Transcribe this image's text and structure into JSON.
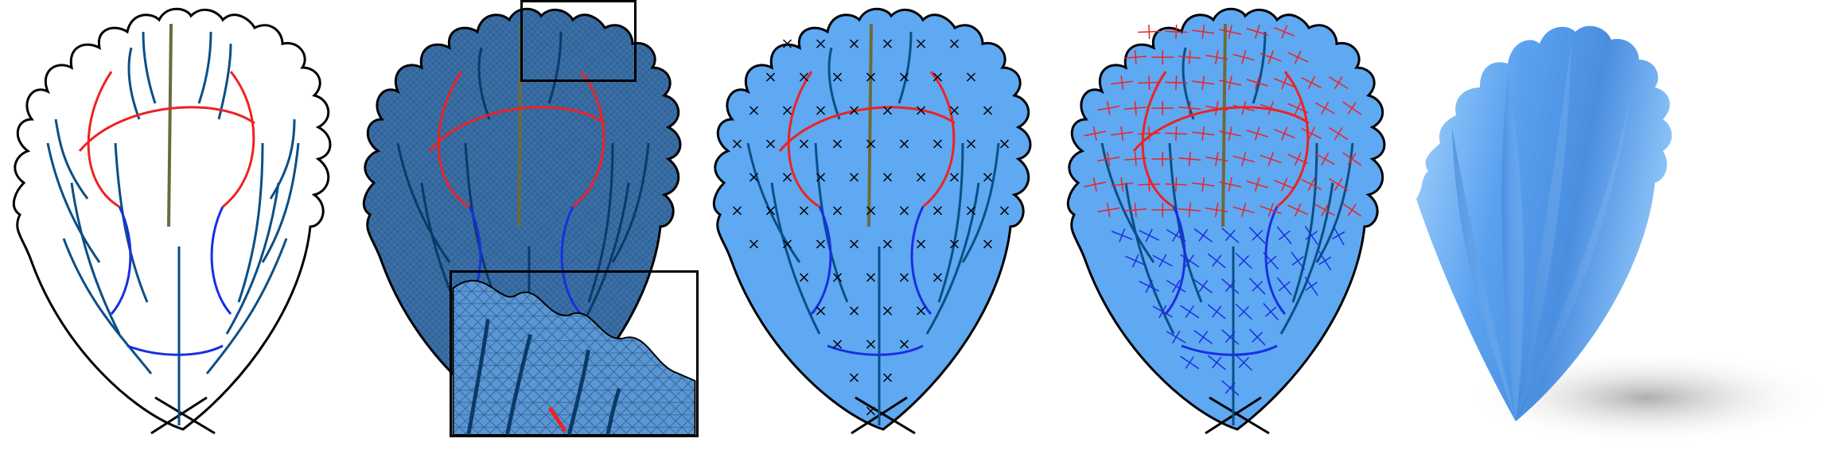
{
  "figure": {
    "panels": [
      {
        "id": "sketch",
        "fill": "#ffffff"
      },
      {
        "id": "mesh",
        "fill": "#3a6fa8"
      },
      {
        "id": "crosses",
        "fill": "#5fa8f2"
      },
      {
        "id": "frame-field",
        "fill": "#5fa8f2"
      },
      {
        "id": "result",
        "fill": "#6aaef2"
      }
    ],
    "colors": {
      "outline": "#000000",
      "vein_blue": "#0b4f86",
      "vein_midrib": "#6b6b3a",
      "curve_red": "#ee2222",
      "curve_dark_blue": "#1a2fe0",
      "leaf_blue": "#5fa8f2",
      "mesh_blue": "#3a6fa8",
      "shadow": "#bdbdbd"
    },
    "inset": {
      "shown": true,
      "zoom_of": "mesh"
    }
  }
}
